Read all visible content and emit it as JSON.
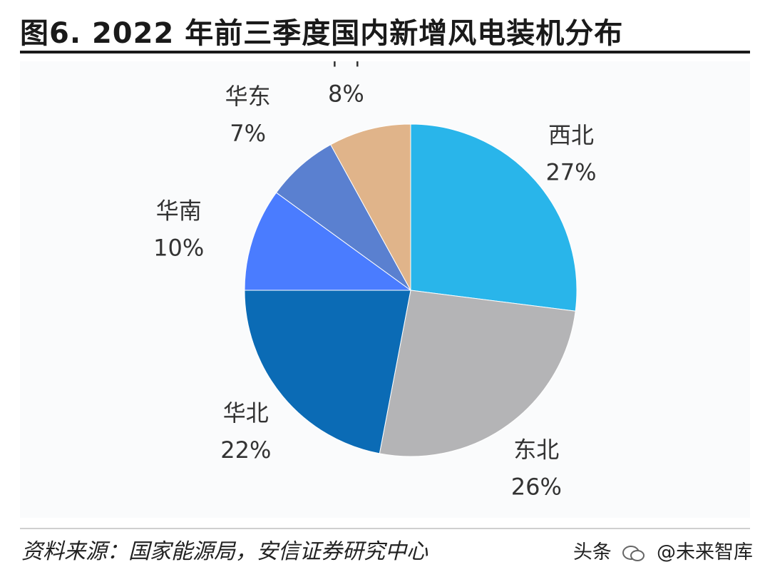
{
  "title": "图6. 2022 年前三季度国内新增风电装机分布",
  "source": "资料来源：国家能源局，安信证券研究中心",
  "watermark": {
    "platform": "头条",
    "handle": "@未来智库"
  },
  "colors": {
    "西北": "#29b5ea",
    "东北": "#b4b4b6",
    "华北": "#0b6bb5",
    "华南": "#4a7cff",
    "华东": "#5a80d0",
    "华中": "#e0b48a"
  },
  "chart_data": {
    "type": "pie",
    "title": "图6. 2022 年前三季度国内新增风电装机分布",
    "unit": "%",
    "slices": [
      {
        "label": "西北",
        "value": 27,
        "display": "27%"
      },
      {
        "label": "东北",
        "value": 26,
        "display": "26%"
      },
      {
        "label": "华北",
        "value": 22,
        "display": "22%"
      },
      {
        "label": "华南",
        "value": 10,
        "display": "10%"
      },
      {
        "label": "华东",
        "value": 7,
        "display": "7%"
      },
      {
        "label": "华中",
        "value": 8,
        "display": "8%"
      }
    ],
    "start_angle": "12 o'clock",
    "direction": "clockwise"
  }
}
